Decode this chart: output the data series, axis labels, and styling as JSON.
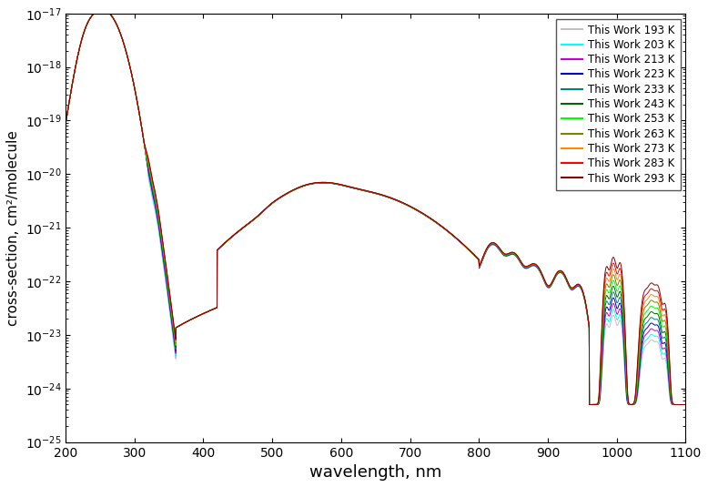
{
  "title": "",
  "xlabel": "wavelength, nm",
  "ylabel": "cross-section, cm²/molecule",
  "xlim": [
    200,
    1100
  ],
  "ylim_log": [
    -25,
    -17
  ],
  "temperatures": [
    193,
    203,
    213,
    223,
    233,
    243,
    253,
    263,
    273,
    283,
    293
  ],
  "colors": [
    "#c0c0c0",
    "#00ffff",
    "#cc00cc",
    "#0000cc",
    "#008080",
    "#006600",
    "#00ff00",
    "#808000",
    "#ff8800",
    "#ff0000",
    "#8b0000"
  ],
  "legend_labels": [
    "This Work 193 K",
    "This Work 203 K",
    "This Work 213 K",
    "This Work 223 K",
    "This Work 233 K",
    "This Work 243 K",
    "This Work 253 K",
    "This Work 263 K",
    "This Work 273 K",
    "This Work 283 K",
    "This Work 293 K"
  ],
  "background_color": "#ffffff",
  "grid": false,
  "linewidth": 0.7
}
